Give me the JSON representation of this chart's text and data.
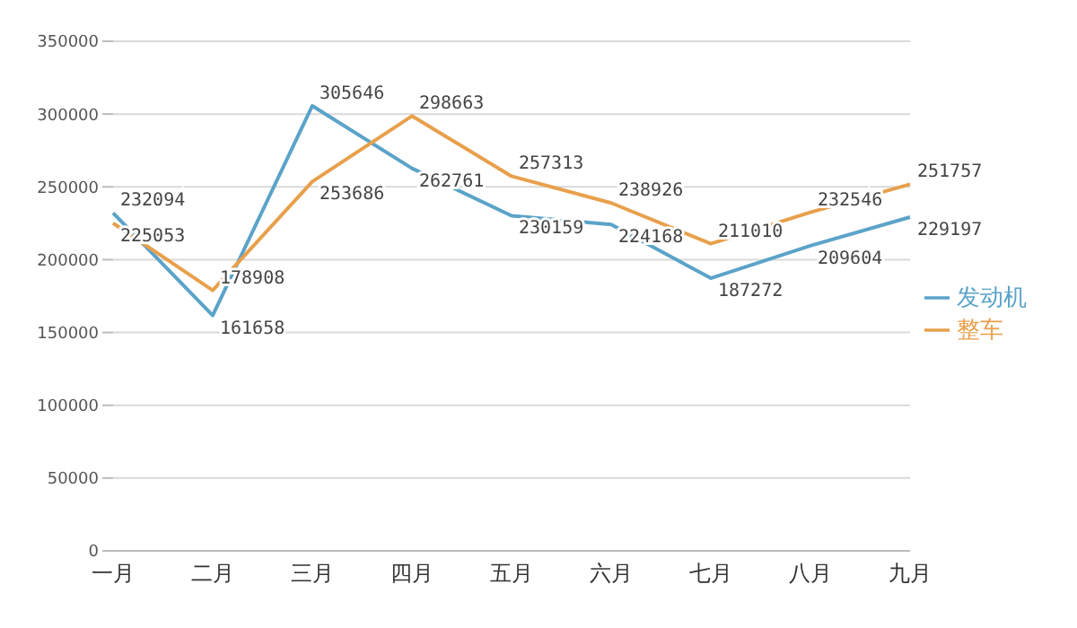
{
  "chart_data": {
    "type": "line",
    "categories": [
      "一月",
      "二月",
      "三月",
      "四月",
      "五月",
      "六月",
      "七月",
      "八月",
      "九月"
    ],
    "series": [
      {
        "name": "发动机",
        "color": "#5ba3c9",
        "values": [
          232094,
          161658,
          305646,
          262761,
          230159,
          224168,
          187272,
          209604,
          229197
        ]
      },
      {
        "name": "整车",
        "color": "#e8a04c",
        "values": [
          225053,
          178908,
          253686,
          298663,
          257313,
          238926,
          211010,
          232546,
          251757
        ]
      }
    ],
    "ylim": [
      0,
      350000
    ],
    "yticks": [
      0,
      50000,
      100000,
      150000,
      200000,
      250000,
      300000,
      350000
    ],
    "grid": "y",
    "legend": "right",
    "data_labels": true,
    "marker": "none",
    "line_style": "solid"
  }
}
